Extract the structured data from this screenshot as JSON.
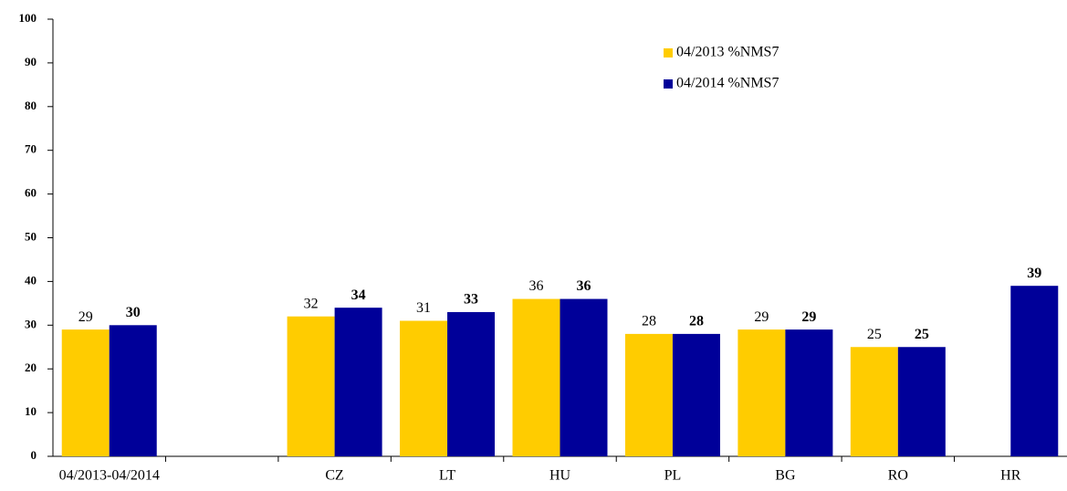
{
  "chart_data": {
    "type": "bar",
    "categories": [
      "04/2013-04/2014",
      null,
      "CZ",
      "LT",
      "HU",
      "PL",
      "BG",
      "RO",
      "HR"
    ],
    "series": [
      {
        "name": "04/2013 %NMS7",
        "color": "#ffcc00",
        "values": [
          29,
          null,
          32,
          31,
          36,
          28,
          29,
          25,
          null
        ]
      },
      {
        "name": "04/2014 %NMS7",
        "color": "#000099",
        "values": [
          30,
          null,
          34,
          33,
          36,
          28,
          29,
          25,
          39
        ]
      }
    ],
    "ylim": [
      0,
      100
    ],
    "yticks": [
      0,
      10,
      20,
      30,
      40,
      50,
      60,
      70,
      80,
      90,
      100
    ],
    "grid": false,
    "legend": "top-right"
  }
}
